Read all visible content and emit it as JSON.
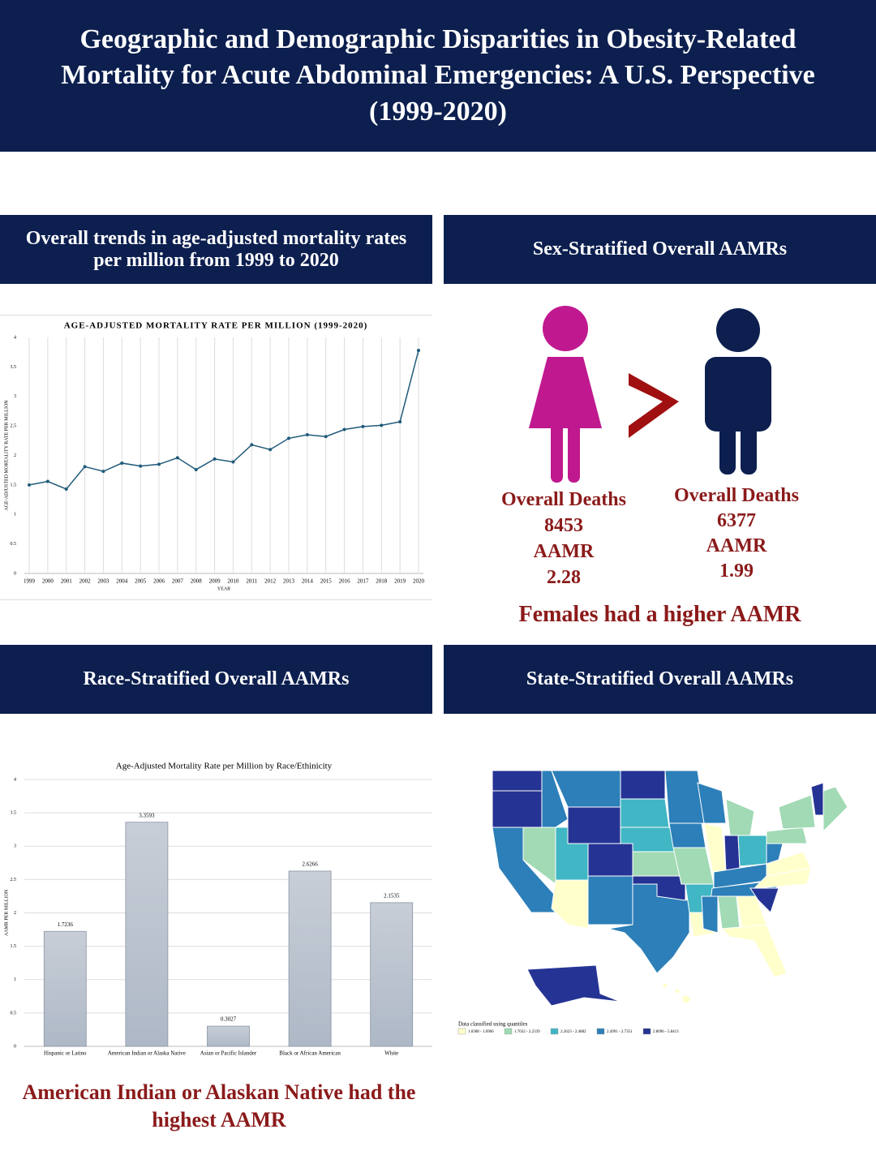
{
  "header": {
    "title": "Geographic and Demographic Disparities in Obesity-Related Mortality for Acute Abdominal Emergencies: A U.S. Perspective (1999-2020)"
  },
  "panels": [
    {
      "title": "Overall trends in age-adjusted mortality rates per million from 1999 to 2020"
    },
    {
      "title": "Sex-Stratified Overall AAMRs"
    },
    {
      "title": "Race-Stratified Overall AAMRs"
    },
    {
      "title": "State-Stratified Overall AAMRs"
    }
  ],
  "chart_data": [
    {
      "type": "line",
      "title": "AGE-ADJUSTED MORTALITY RATE PER MILLION (1999-2020)",
      "x_label": "YEAR",
      "y_label": "AGE-ADJUSTED MORTALITY RATE PER MILLION",
      "categories": [
        "1999",
        "2000",
        "2001",
        "2002",
        "2003",
        "2004",
        "2005",
        "2006",
        "2007",
        "2008",
        "2009",
        "2010",
        "2011",
        "2012",
        "2013",
        "2014",
        "2015",
        "2016",
        "2017",
        "2018",
        "2019",
        "2020"
      ],
      "values": [
        1.5,
        1.56,
        1.43,
        1.81,
        1.73,
        1.87,
        1.82,
        1.85,
        1.96,
        1.76,
        1.94,
        1.89,
        2.18,
        2.1,
        2.29,
        2.35,
        2.32,
        2.44,
        2.49,
        2.51,
        2.57,
        3.78
      ],
      "color": "#1f5a7a",
      "ylim": [
        0,
        4
      ],
      "yticks": [
        0,
        0.5,
        1,
        1.5,
        2,
        2.5,
        3,
        3.5,
        4
      ],
      "grid": "vertical"
    },
    {
      "type": "bar",
      "title": "Age-Adjusted Mortality Rate per Million by Race/Ethinicity",
      "y_label": "AAMR PER MILLION",
      "categories": [
        "Hispanic or Latino",
        "American Indian or Alaska Native",
        "Asian or Pacific Islander",
        "Black or African American",
        "White"
      ],
      "values": [
        1.7236,
        3.3593,
        0.3027,
        2.6266,
        2.1535
      ],
      "color": "#aeb8c6",
      "ylim": [
        0,
        4
      ],
      "yticks": [
        0,
        0.5,
        1,
        1.5,
        2,
        2.5,
        3,
        3.5,
        4
      ],
      "grid": "horizontal"
    }
  ],
  "sex": {
    "female": {
      "deaths_label": "Overall Deaths",
      "deaths": 8453,
      "aamr_label": "AAMR",
      "aamr": 2.28,
      "color": "#c0198f"
    },
    "male": {
      "deaths_label": "Overall Deaths",
      "deaths": 6377,
      "aamr_label": "AAMR",
      "aamr": 1.99,
      "color": "#0c1f4f"
    },
    "conclusion": "Females had a higher AAMR"
  },
  "race_conclusion": "American Indian or Alaskan Native had the highest AAMR",
  "map": {
    "legend_title": "Data classified using quantiles",
    "legend": [
      {
        "label": "1.0308 - 1.6906",
        "color": "#ffffcc"
      },
      {
        "label": "1.7032 - 2.2339",
        "color": "#a1dab4"
      },
      {
        "label": "2.2623 - 2.4882",
        "color": "#41b6c4"
      },
      {
        "label": "2.4991 - 2.7351",
        "color": "#2c7fb8"
      },
      {
        "label": "2.8096 - 5.8413",
        "color": "#253494"
      }
    ]
  }
}
